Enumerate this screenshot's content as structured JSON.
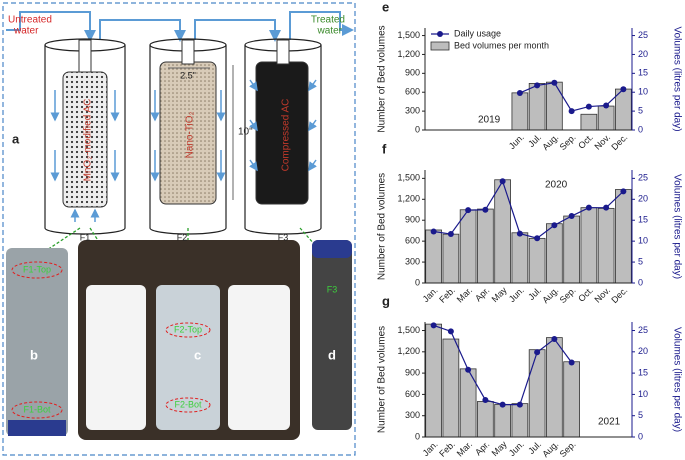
{
  "diagram": {
    "panel": "a",
    "untreated": [
      "Untreated",
      "water"
    ],
    "treated": [
      "Treated",
      "water"
    ],
    "filters": [
      {
        "id": "F1",
        "media": "MnO₂-modified AC"
      },
      {
        "id": "F2",
        "media": "Nano-TiO₂"
      },
      {
        "id": "F3",
        "media": "Compressed AC"
      }
    ],
    "diameter": "2.5\"",
    "length": "10\"",
    "photos": [
      {
        "panel": "b",
        "tags": [
          "F1-Top",
          "F1-Bot"
        ]
      },
      {
        "panel": "c",
        "tags": [
          "F2-Top",
          "F2-Bot"
        ]
      },
      {
        "panel": "d",
        "tags": [
          "F3"
        ]
      }
    ]
  },
  "chart_data": [
    {
      "type": "bar",
      "panel": "e",
      "annotation": "2019",
      "ylabel": "Number of Bed volumes",
      "y2label": "Volumes (litres per day)",
      "categories": [
        null,
        null,
        null,
        null,
        null,
        "Jun.",
        "Jul.",
        "Aug.",
        "Sep.",
        "Oct.",
        "Nov.",
        "Dec."
      ],
      "series": [
        {
          "name": "Bed volumes per month",
          "type": "bar",
          "color": "#bdbdbd",
          "values": [
            null,
            null,
            null,
            null,
            null,
            590,
            740,
            760,
            null,
            250,
            380,
            650
          ]
        },
        {
          "name": "Daily usage",
          "type": "line",
          "axis": "y2",
          "color": "#1a1a8c",
          "values": [
            null,
            null,
            null,
            null,
            null,
            9.8,
            11.8,
            12.5,
            5,
            6.2,
            6.5,
            10.8
          ]
        }
      ],
      "legend": "upper left",
      "ylim": [
        0,
        1620
      ],
      "yticks": [
        0,
        300,
        600,
        900,
        {
          "value": 1200,
          "label": "1,200"
        },
        {
          "value": 1500,
          "label": "1,500"
        }
      ],
      "y2lim": [
        0,
        27
      ],
      "y2ticks": [
        0,
        5,
        10,
        15,
        20,
        25
      ]
    },
    {
      "type": "bar",
      "panel": "f",
      "annotation": "2020",
      "ylabel": "Number of Bed volumes",
      "y2label": "Volumes (litres per day)",
      "categories": [
        "Jan.",
        "Feb.",
        "Mar.",
        "Apr.",
        "May",
        "Jun.",
        "Jul.",
        "Aug.",
        "Sep.",
        "Oct.",
        "Nov.",
        "Dec."
      ],
      "series": [
        {
          "type": "bar",
          "color": "#bdbdbd",
          "values": [
            760,
            700,
            1050,
            1060,
            1480,
            720,
            640,
            850,
            960,
            1080,
            1070,
            1340
          ]
        },
        {
          "type": "line",
          "axis": "y2",
          "color": "#1a1a8c",
          "values": [
            12.3,
            11.7,
            17.4,
            17.5,
            24.3,
            11.8,
            10.7,
            13.8,
            16.0,
            18.0,
            18.0,
            21.9
          ]
        }
      ],
      "ylim": [
        0,
        1620
      ],
      "yticks": [
        0,
        300,
        600,
        900,
        {
          "value": 1200,
          "label": "1,200"
        },
        {
          "value": 1500,
          "label": "1,500"
        }
      ],
      "y2lim": [
        0,
        27
      ],
      "y2ticks": [
        0,
        5,
        10,
        15,
        20,
        25
      ]
    },
    {
      "type": "bar",
      "panel": "g",
      "annotation": "2021",
      "ylabel": "Number of Bed volumes",
      "y2label": "Volumes (litres per day)",
      "categories": [
        "Jan.",
        "Feb.",
        "Mar.",
        "Apr.",
        "May",
        "Jun.",
        "Jul.",
        "Aug.",
        "Sep.",
        null,
        null,
        null
      ],
      "series": [
        {
          "type": "bar",
          "color": "#bdbdbd",
          "values": [
            1590,
            1380,
            960,
            500,
            460,
            470,
            1230,
            1400,
            1060,
            null,
            null,
            null
          ]
        },
        {
          "type": "line",
          "axis": "y2",
          "color": "#1a1a8c",
          "values": [
            26.2,
            24.8,
            15.8,
            8.7,
            7.6,
            7.6,
            19.9,
            23.0,
            17.5,
            null,
            null,
            null
          ]
        }
      ],
      "ylim": [
        0,
        1620
      ],
      "yticks": [
        0,
        300,
        600,
        900,
        {
          "value": 1200,
          "label": "1,200"
        },
        {
          "value": 1500,
          "label": "1,500"
        }
      ],
      "y2lim": [
        0,
        27
      ],
      "y2ticks": [
        0,
        5,
        10,
        15,
        20,
        25
      ]
    }
  ]
}
